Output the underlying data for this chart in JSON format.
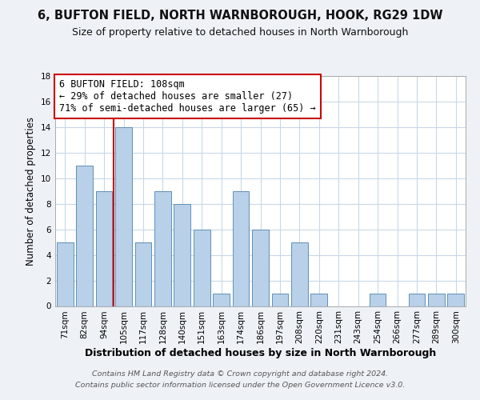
{
  "title": "6, BUFTON FIELD, NORTH WARNBOROUGH, HOOK, RG29 1DW",
  "subtitle": "Size of property relative to detached houses in North Warnborough",
  "xlabel": "Distribution of detached houses by size in North Warnborough",
  "ylabel": "Number of detached properties",
  "bar_labels": [
    "71sqm",
    "82sqm",
    "94sqm",
    "105sqm",
    "117sqm",
    "128sqm",
    "140sqm",
    "151sqm",
    "163sqm",
    "174sqm",
    "186sqm",
    "197sqm",
    "208sqm",
    "220sqm",
    "231sqm",
    "243sqm",
    "254sqm",
    "266sqm",
    "277sqm",
    "289sqm",
    "300sqm"
  ],
  "bar_values": [
    5,
    11,
    9,
    14,
    5,
    9,
    8,
    6,
    1,
    9,
    6,
    1,
    5,
    1,
    0,
    0,
    1,
    0,
    1,
    1,
    1
  ],
  "bar_color": "#b8d0e8",
  "bar_edge_color": "#6090b8",
  "vline_x": 2.5,
  "vline_color": "#cc0000",
  "annotation_text": "6 BUFTON FIELD: 108sqm\n← 29% of detached houses are smaller (27)\n71% of semi-detached houses are larger (65) →",
  "annotation_box_color": "#ffffff",
  "annotation_box_edge_color": "#cc0000",
  "ylim": [
    0,
    18
  ],
  "yticks": [
    0,
    2,
    4,
    6,
    8,
    10,
    12,
    14,
    16,
    18
  ],
  "background_color": "#eef2f7",
  "plot_background_color": "#ffffff",
  "grid_color": "#c8d8e8",
  "footer_line1": "Contains HM Land Registry data © Crown copyright and database right 2024.",
  "footer_line2": "Contains public sector information licensed under the Open Government Licence v3.0.",
  "title_fontsize": 10.5,
  "subtitle_fontsize": 9,
  "xlabel_fontsize": 9,
  "ylabel_fontsize": 8.5,
  "tick_fontsize": 7.5,
  "annotation_fontsize": 8.5,
  "footer_fontsize": 6.8
}
